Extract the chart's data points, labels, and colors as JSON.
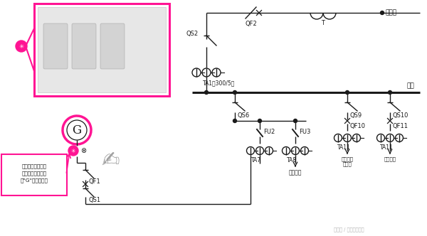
{
  "bg_color": "#ffffff",
  "pink": "#FF1493",
  "dark": "#1a1a1a",
  "main_power": "主电源",
  "bus_label": "母线",
  "qf2": "QF2",
  "qs2": "QS2",
  "ta1": "TA1（300/5）",
  "qs6": "QS6",
  "fu2": "FU2",
  "fu3": "FU3",
  "qs9": "QS9",
  "qs10": "QS10",
  "qf10": "QF10",
  "qf11": "QF11",
  "ta7": "TA7",
  "ta8": "TA8",
  "ta11a": "TA11",
  "ta11b": "TA11",
  "qf1": "QF1",
  "qs1": "QS1",
  "T_label": "T",
  "lighting": "照明设备",
  "fire": "消防用电",
  "elevator": "电梯用电",
  "watermark": "头条号 / 全球电气资源",
  "label_text": "该线路中发电机用\n图形符号及文字符\n号\"G\"进行标识。",
  "lw": 1.0,
  "lw_bus": 2.2,
  "lw_pink": 2.5
}
